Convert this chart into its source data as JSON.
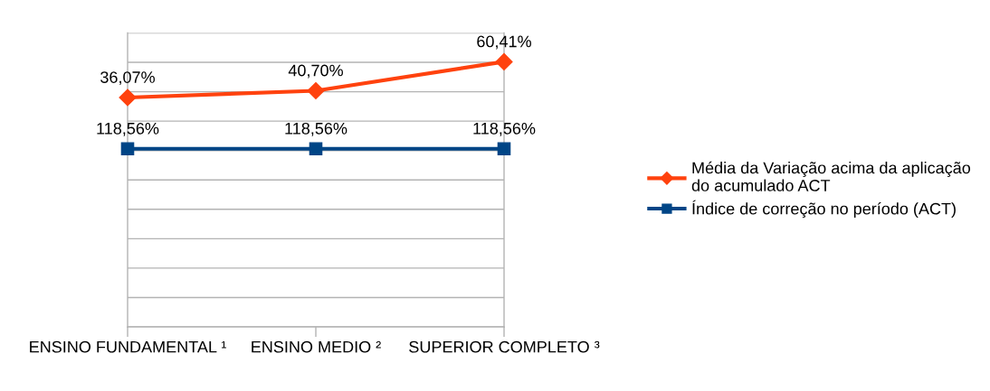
{
  "chart_data": {
    "type": "line",
    "categories": [
      "ENSINO FUNDAMENTAL ¹",
      "ENSINO MEDIO ²",
      "SUPERIOR COMPLETO ³"
    ],
    "series": [
      {
        "name": "Média da Variação acima da aplicação\ndo acumulado ACT",
        "color": "#ff420e",
        "values": [
          36.07,
          40.7,
          60.41
        ],
        "value_labels": [
          "36,07%",
          "40,70%",
          "60,41%"
        ],
        "marker": "diamond"
      },
      {
        "name": "Índice de correção no período (ACT)",
        "color": "#004586",
        "values": [
          1.1856,
          1.1856,
          1.1856
        ],
        "value_labels": [
          "118,56%",
          "118,56%",
          "118,56%"
        ],
        "marker": "square"
      }
    ],
    "ylim": [
      -120,
      80
    ],
    "yticks": [
      {
        "value": -120,
        "label": null
      },
      {
        "value": -100,
        "label": null
      },
      {
        "value": -80,
        "label": null
      },
      {
        "value": -60,
        "label": null
      },
      {
        "value": -40,
        "label": null
      },
      {
        "value": -20,
        "label": null
      },
      {
        "value": 0,
        "label": null
      },
      {
        "value": 20,
        "label": null
      },
      {
        "value": 40,
        "label": null
      },
      {
        "value": 60,
        "label": null
      },
      {
        "value": 80,
        "label": null
      }
    ],
    "grid": "y",
    "legend": "right",
    "tick_labels": "x",
    "line_style": "solid"
  }
}
